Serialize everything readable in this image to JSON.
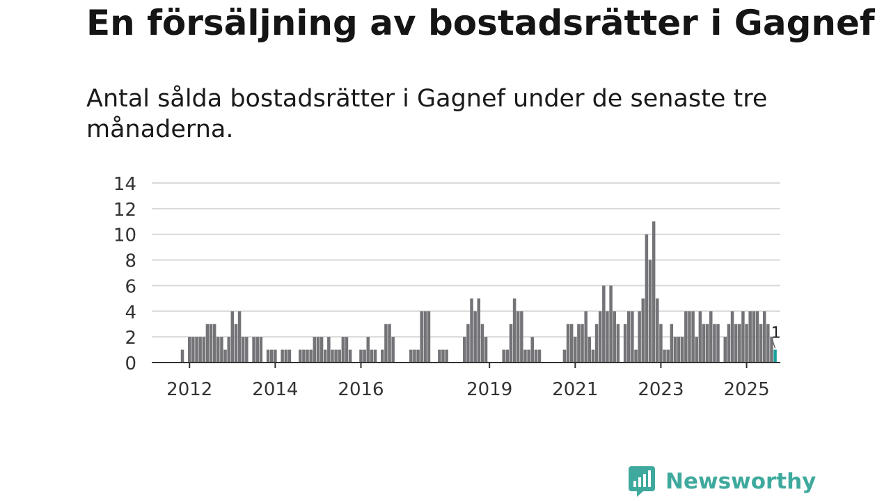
{
  "title": "En försäljning av bostadsrätter i Gagnef",
  "subtitle": "Antal sålda bostadsrätter i Gagnef under de senaste tre månaderna.",
  "brand": {
    "name": "Newsworthy",
    "logo_icon": "bar-chart-speech-bubble-icon"
  },
  "colors": {
    "bar": "#747478",
    "highlight": "#1aa09a",
    "grid": "#d9d9d9",
    "axis": "#333333",
    "brand": "#3fa99d"
  },
  "chart_data": {
    "type": "bar",
    "title": "",
    "xlabel": "",
    "ylabel": "",
    "ylim": [
      0,
      14
    ],
    "yticks": [
      "0",
      "2",
      "4",
      "6",
      "8",
      "10",
      "12",
      "14"
    ],
    "xticks": [
      "2012",
      "2014",
      "2016",
      "2019",
      "2021",
      "2023",
      "2025"
    ],
    "grid": true,
    "x_start": "2011-11",
    "x_end": "2025-03",
    "highlight_label": "1",
    "values": [
      1,
      0,
      2,
      2,
      2,
      2,
      2,
      3,
      3,
      3,
      2,
      2,
      1,
      2,
      4,
      3,
      4,
      2,
      2,
      0,
      2,
      2,
      2,
      0,
      1,
      1,
      1,
      0,
      1,
      1,
      1,
      0,
      0,
      1,
      1,
      1,
      1,
      2,
      2,
      2,
      1,
      2,
      1,
      1,
      1,
      2,
      2,
      1,
      0,
      0,
      1,
      1,
      2,
      1,
      1,
      0,
      1,
      3,
      3,
      2,
      0,
      0,
      0,
      0,
      1,
      1,
      1,
      4,
      4,
      4,
      0,
      0,
      1,
      1,
      1,
      0,
      0,
      0,
      0,
      2,
      3,
      5,
      4,
      5,
      3,
      2,
      0,
      0,
      0,
      0,
      1,
      1,
      3,
      5,
      4,
      4,
      1,
      1,
      2,
      1,
      1,
      0,
      0,
      0,
      0,
      0,
      0,
      1,
      3,
      3,
      2,
      3,
      3,
      4,
      2,
      1,
      3,
      4,
      6,
      4,
      6,
      4,
      3,
      0,
      3,
      4,
      4,
      1,
      4,
      5,
      10,
      8,
      11,
      5,
      3,
      1,
      1,
      3,
      2,
      2,
      2,
      4,
      4,
      4,
      2,
      4,
      3,
      3,
      4,
      3,
      3,
      0,
      2,
      3,
      4,
      3,
      3,
      4,
      3,
      4,
      4,
      4,
      3,
      4,
      3,
      2,
      1
    ]
  }
}
